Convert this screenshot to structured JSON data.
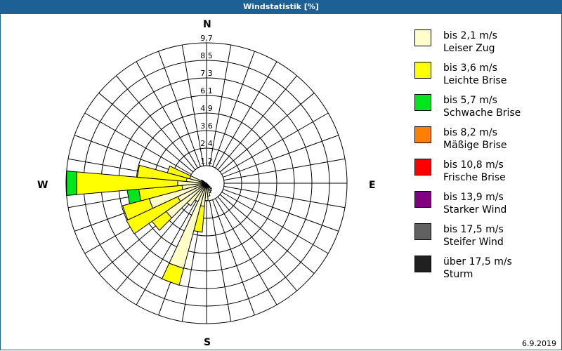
{
  "window": {
    "title": "Windstatistik [%]"
  },
  "compass": {
    "north": "N",
    "east": "E",
    "south": "S",
    "west": "W"
  },
  "footer": {
    "date": "6.9.2019"
  },
  "legend": [
    {
      "range": "bis 2,1 m/s",
      "name": "Leiser Zug",
      "color": "#fffdc8"
    },
    {
      "range": "bis 3,6 m/s",
      "name": "Leichte Brise",
      "color": "#ffff00"
    },
    {
      "range": "bis 5,7 m/s",
      "name": "Schwache Brise",
      "color": "#00e61e"
    },
    {
      "range": "bis 8,2 m/s",
      "name": "Mäßige Brise",
      "color": "#ff8000"
    },
    {
      "range": "bis 10,8 m/s",
      "name": "Frische Brise",
      "color": "#ff0000"
    },
    {
      "range": "bis 13,9 m/s",
      "name": "Starker Wind",
      "color": "#800080"
    },
    {
      "range": "bis 17,5 m/s",
      "name": "Steifer Wind",
      "color": "#606060"
    },
    {
      "range": "über 17,5 m/s",
      "name": "Sturm",
      "color": "#202020"
    }
  ],
  "chart_data": {
    "type": "wind-rose (stacked polar bar)",
    "title": "Windstatistik [%]",
    "unit": "%",
    "radial_ticks": [
      "1,2",
      "2,4",
      "3,6",
      "4,9",
      "6,1",
      "7,3",
      "8,5",
      "9,7"
    ],
    "radial_max": 9.7,
    "sector_width_deg": 10,
    "series_names": [
      "Leiser Zug",
      "Leichte Brise",
      "Schwache Brise",
      "Mäßige Brise",
      "Frische Brise",
      "Starker Wind",
      "Steifer Wind",
      "Sturm"
    ],
    "sectors": [
      {
        "dir": 140,
        "values": [
          0.5,
          0,
          0,
          0,
          0,
          0,
          0,
          0
        ]
      },
      {
        "dir": 150,
        "values": [
          0.6,
          0,
          0,
          0,
          0,
          0,
          0,
          0
        ]
      },
      {
        "dir": 160,
        "values": [
          0.7,
          0,
          0,
          0,
          0,
          0,
          0,
          0
        ]
      },
      {
        "dir": 170,
        "values": [
          0.9,
          0,
          0,
          0,
          0,
          0,
          0,
          0
        ]
      },
      {
        "dir": 180,
        "values": [
          1.2,
          0,
          0,
          0,
          0,
          0,
          0,
          0
        ]
      },
      {
        "dir": 190,
        "values": [
          1.6,
          1.8,
          0,
          0,
          0,
          0,
          0,
          0
        ]
      },
      {
        "dir": 200,
        "values": [
          6.1,
          1.2,
          0,
          0,
          0,
          0,
          0,
          0
        ]
      },
      {
        "dir": 210,
        "values": [
          1.4,
          0,
          0,
          0,
          0,
          0,
          0,
          0
        ]
      },
      {
        "dir": 220,
        "values": [
          1.9,
          0,
          0,
          0,
          0,
          0,
          0,
          0
        ]
      },
      {
        "dir": 230,
        "values": [
          3.4,
          1.2,
          0,
          0,
          0,
          0,
          0,
          0
        ]
      },
      {
        "dir": 240,
        "values": [
          2.2,
          3.9,
          0,
          0,
          0,
          0,
          0,
          0
        ]
      },
      {
        "dir": 250,
        "values": [
          4.1,
          1.9,
          0,
          0,
          0,
          0,
          0,
          0
        ]
      },
      {
        "dir": 260,
        "values": [
          1.7,
          3.0,
          0.8,
          0,
          0,
          0,
          0,
          0
        ]
      },
      {
        "dir": 270,
        "values": [
          2.0,
          7.0,
          0.7,
          0,
          0,
          0,
          0,
          0
        ]
      },
      {
        "dir": 280,
        "values": [
          1.4,
          3.4,
          0,
          0,
          0,
          0,
          0,
          0
        ]
      },
      {
        "dir": 290,
        "values": [
          1.2,
          1.6,
          0,
          0,
          0,
          0,
          0,
          0
        ]
      },
      {
        "dir": 300,
        "values": [
          0.4,
          0,
          0,
          0,
          0,
          0,
          0,
          0
        ]
      }
    ],
    "grid": {
      "rings": 8,
      "spokes": 36
    }
  }
}
